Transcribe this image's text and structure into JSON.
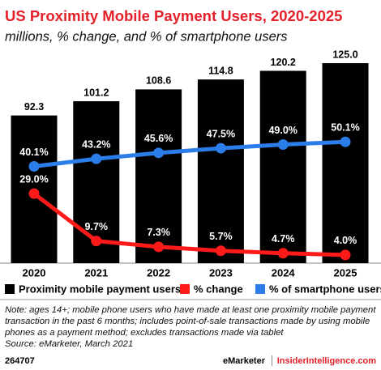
{
  "chart_data": {
    "type": "bar",
    "title": "US Proximity Mobile Payment Users, 2020-2025",
    "subtitle": "millions, % change, and % of smartphone users",
    "categories": [
      "2020",
      "2021",
      "2022",
      "2023",
      "2024",
      "2025"
    ],
    "series": [
      {
        "name": "Proximity mobile payment users",
        "type": "bar",
        "color": "#000000",
        "values": [
          92.3,
          101.2,
          108.6,
          114.8,
          120.2,
          125.0
        ],
        "value_labels": [
          "92.3",
          "101.2",
          "108.6",
          "114.8",
          "120.2",
          "125.0"
        ]
      },
      {
        "name": "% change",
        "type": "line",
        "color": "#ff1a1a",
        "values": [
          29.0,
          9.7,
          7.3,
          5.7,
          4.7,
          4.0
        ],
        "value_labels": [
          "29.0%",
          "9.7%",
          "7.3%",
          "5.7%",
          "4.7%",
          "4.0%"
        ]
      },
      {
        "name": "% of smartphone users",
        "type": "line",
        "color": "#2b7de9",
        "values": [
          40.1,
          43.2,
          45.6,
          47.5,
          49.0,
          50.1
        ],
        "value_labels": [
          "40.1%",
          "43.2%",
          "45.6%",
          "47.5%",
          "49.0%",
          "50.1%"
        ]
      }
    ],
    "legend": "bottom"
  },
  "note": "Note: ages 14+; mobile phone users who have made at least one proximity mobile payment transaction in the past 6 months; includes point-of-sale transactions made by using mobile phones as a payment method; excludes transactions made via tablet",
  "source": "Source: eMarketer, March 2021",
  "footer": {
    "id": "264707",
    "brand": "eMarketer",
    "site": "InsiderIntelligence.com"
  }
}
